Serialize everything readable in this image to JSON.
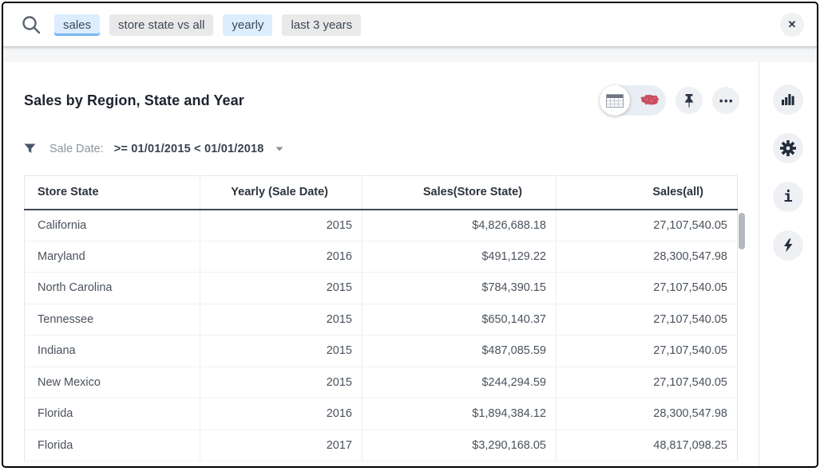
{
  "colors": {
    "token_active_bg": "#dceefd",
    "token_underline": "#79b7f4",
    "token_gray_bg": "#e9e9ea",
    "icon_navy": "#2b3648",
    "table_header_rule": "#3d4856",
    "map_icon_red": "#c95063"
  },
  "search": {
    "tokens": [
      {
        "label": "sales",
        "style": "active"
      },
      {
        "label": "store state vs all",
        "style": "gray"
      },
      {
        "label": "yearly",
        "style": "blue"
      },
      {
        "label": "last 3 years",
        "style": "gray"
      }
    ],
    "close_label": "✕"
  },
  "answer": {
    "title": "Sales by Region, State and Year",
    "filter_label": "Sale Date:",
    "filter_value": ">= 01/01/2015 < 01/01/2018",
    "more_label": "•••"
  },
  "table": {
    "columns": [
      {
        "label": "Store State",
        "align": "left"
      },
      {
        "label": "Yearly (Sale Date)",
        "align": "right"
      },
      {
        "label": "Sales(Store State)",
        "align": "right"
      },
      {
        "label": "Sales(all)",
        "align": "right"
      }
    ],
    "rows": [
      [
        "California",
        "2015",
        "$4,826,688.18",
        "27,107,540.05"
      ],
      [
        "Maryland",
        "2016",
        "$491,129.22",
        "28,300,547.98"
      ],
      [
        "North Carolina",
        "2015",
        "$784,390.15",
        "27,107,540.05"
      ],
      [
        "Tennessee",
        "2015",
        "$650,140.37",
        "27,107,540.05"
      ],
      [
        "Indiana",
        "2015",
        "$487,085.59",
        "27,107,540.05"
      ],
      [
        "New Mexico",
        "2015",
        "$244,294.59",
        "27,107,540.05"
      ],
      [
        "Florida",
        "2016",
        "$1,894,384.12",
        "28,300,547.98"
      ],
      [
        "Florida",
        "2017",
        "$3,290,168.05",
        "48,817,098.25"
      ]
    ]
  },
  "sidebar": {
    "info_glyph": "i",
    "icons": [
      "bar-chart",
      "settings-gear",
      "info",
      "lightning-bolt"
    ]
  }
}
